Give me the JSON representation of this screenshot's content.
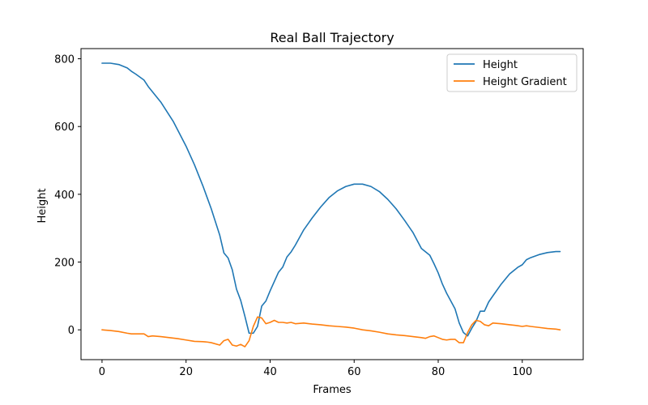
{
  "chart_data": {
    "type": "line",
    "title": "Real Ball Trajectory",
    "xlabel": "Frames",
    "ylabel": "Height",
    "xlim": [
      -5,
      114.5
    ],
    "ylim": [
      -88,
      830
    ],
    "xticks": [
      0,
      20,
      40,
      60,
      80,
      100
    ],
    "yticks": [
      0,
      200,
      400,
      600,
      800
    ],
    "grid": false,
    "legend_position": "top-right",
    "series": [
      {
        "name": "Height",
        "color": "#1f77b4",
        "x": [
          0,
          2,
          4,
          6,
          7,
          8,
          10,
          11,
          14,
          17,
          20,
          22,
          24,
          26,
          28,
          29,
          30,
          31,
          32,
          33,
          34,
          35,
          36,
          37,
          38,
          39,
          40,
          42,
          43,
          44,
          45,
          46,
          48,
          50,
          52,
          54,
          56,
          58,
          60,
          62,
          64,
          66,
          68,
          70,
          72,
          74,
          76,
          78,
          79,
          80,
          81,
          82,
          83,
          84,
          85,
          86,
          87,
          88,
          89,
          90,
          91,
          92,
          93,
          95,
          97,
          99,
          100,
          101,
          102,
          104,
          106,
          108,
          109
        ],
        "y": [
          787,
          787,
          783,
          773,
          763,
          755,
          737,
          718,
          672,
          614,
          542,
          487,
          425,
          357,
          280,
          227,
          212,
          177,
          120,
          87,
          40,
          -10,
          -10,
          10,
          70,
          85,
          115,
          170,
          185,
          215,
          230,
          250,
          295,
          330,
          362,
          390,
          410,
          423,
          430,
          430,
          423,
          408,
          385,
          357,
          323,
          287,
          240,
          220,
          195,
          168,
          135,
          108,
          85,
          62,
          20,
          -8,
          -18,
          5,
          25,
          55,
          55,
          82,
          100,
          135,
          165,
          185,
          192,
          207,
          213,
          222,
          228,
          231,
          231
        ]
      },
      {
        "name": "Height Gradient",
        "color": "#ff7f0e",
        "x": [
          0,
          2,
          4,
          6,
          7,
          8,
          10,
          11,
          12,
          14,
          16,
          18,
          20,
          22,
          24,
          25,
          26,
          28,
          29,
          30,
          31,
          32,
          33,
          34,
          35,
          36,
          37,
          38,
          39,
          40,
          41,
          42,
          43,
          44,
          45,
          46,
          48,
          50,
          52,
          54,
          56,
          58,
          60,
          62,
          64,
          66,
          68,
          70,
          72,
          74,
          76,
          77,
          78,
          79,
          80,
          81,
          82,
          83,
          84,
          85,
          86,
          87,
          88,
          89,
          90,
          91,
          92,
          93,
          95,
          97,
          99,
          100,
          101,
          102,
          104,
          106,
          108,
          109
        ],
        "y": [
          0,
          -2,
          -5,
          -10,
          -12,
          -12,
          -12,
          -20,
          -18,
          -20,
          -23,
          -26,
          -30,
          -34,
          -35,
          -36,
          -38,
          -45,
          -32,
          -28,
          -45,
          -48,
          -43,
          -50,
          -32,
          10,
          38,
          35,
          18,
          22,
          28,
          22,
          22,
          20,
          22,
          18,
          20,
          17,
          15,
          12,
          10,
          8,
          5,
          0,
          -3,
          -7,
          -12,
          -15,
          -17,
          -20,
          -23,
          -25,
          -20,
          -18,
          -23,
          -28,
          -30,
          -28,
          -28,
          -38,
          -38,
          -8,
          15,
          28,
          25,
          15,
          12,
          20,
          18,
          15,
          12,
          10,
          12,
          10,
          7,
          4,
          2,
          0
        ]
      }
    ]
  }
}
